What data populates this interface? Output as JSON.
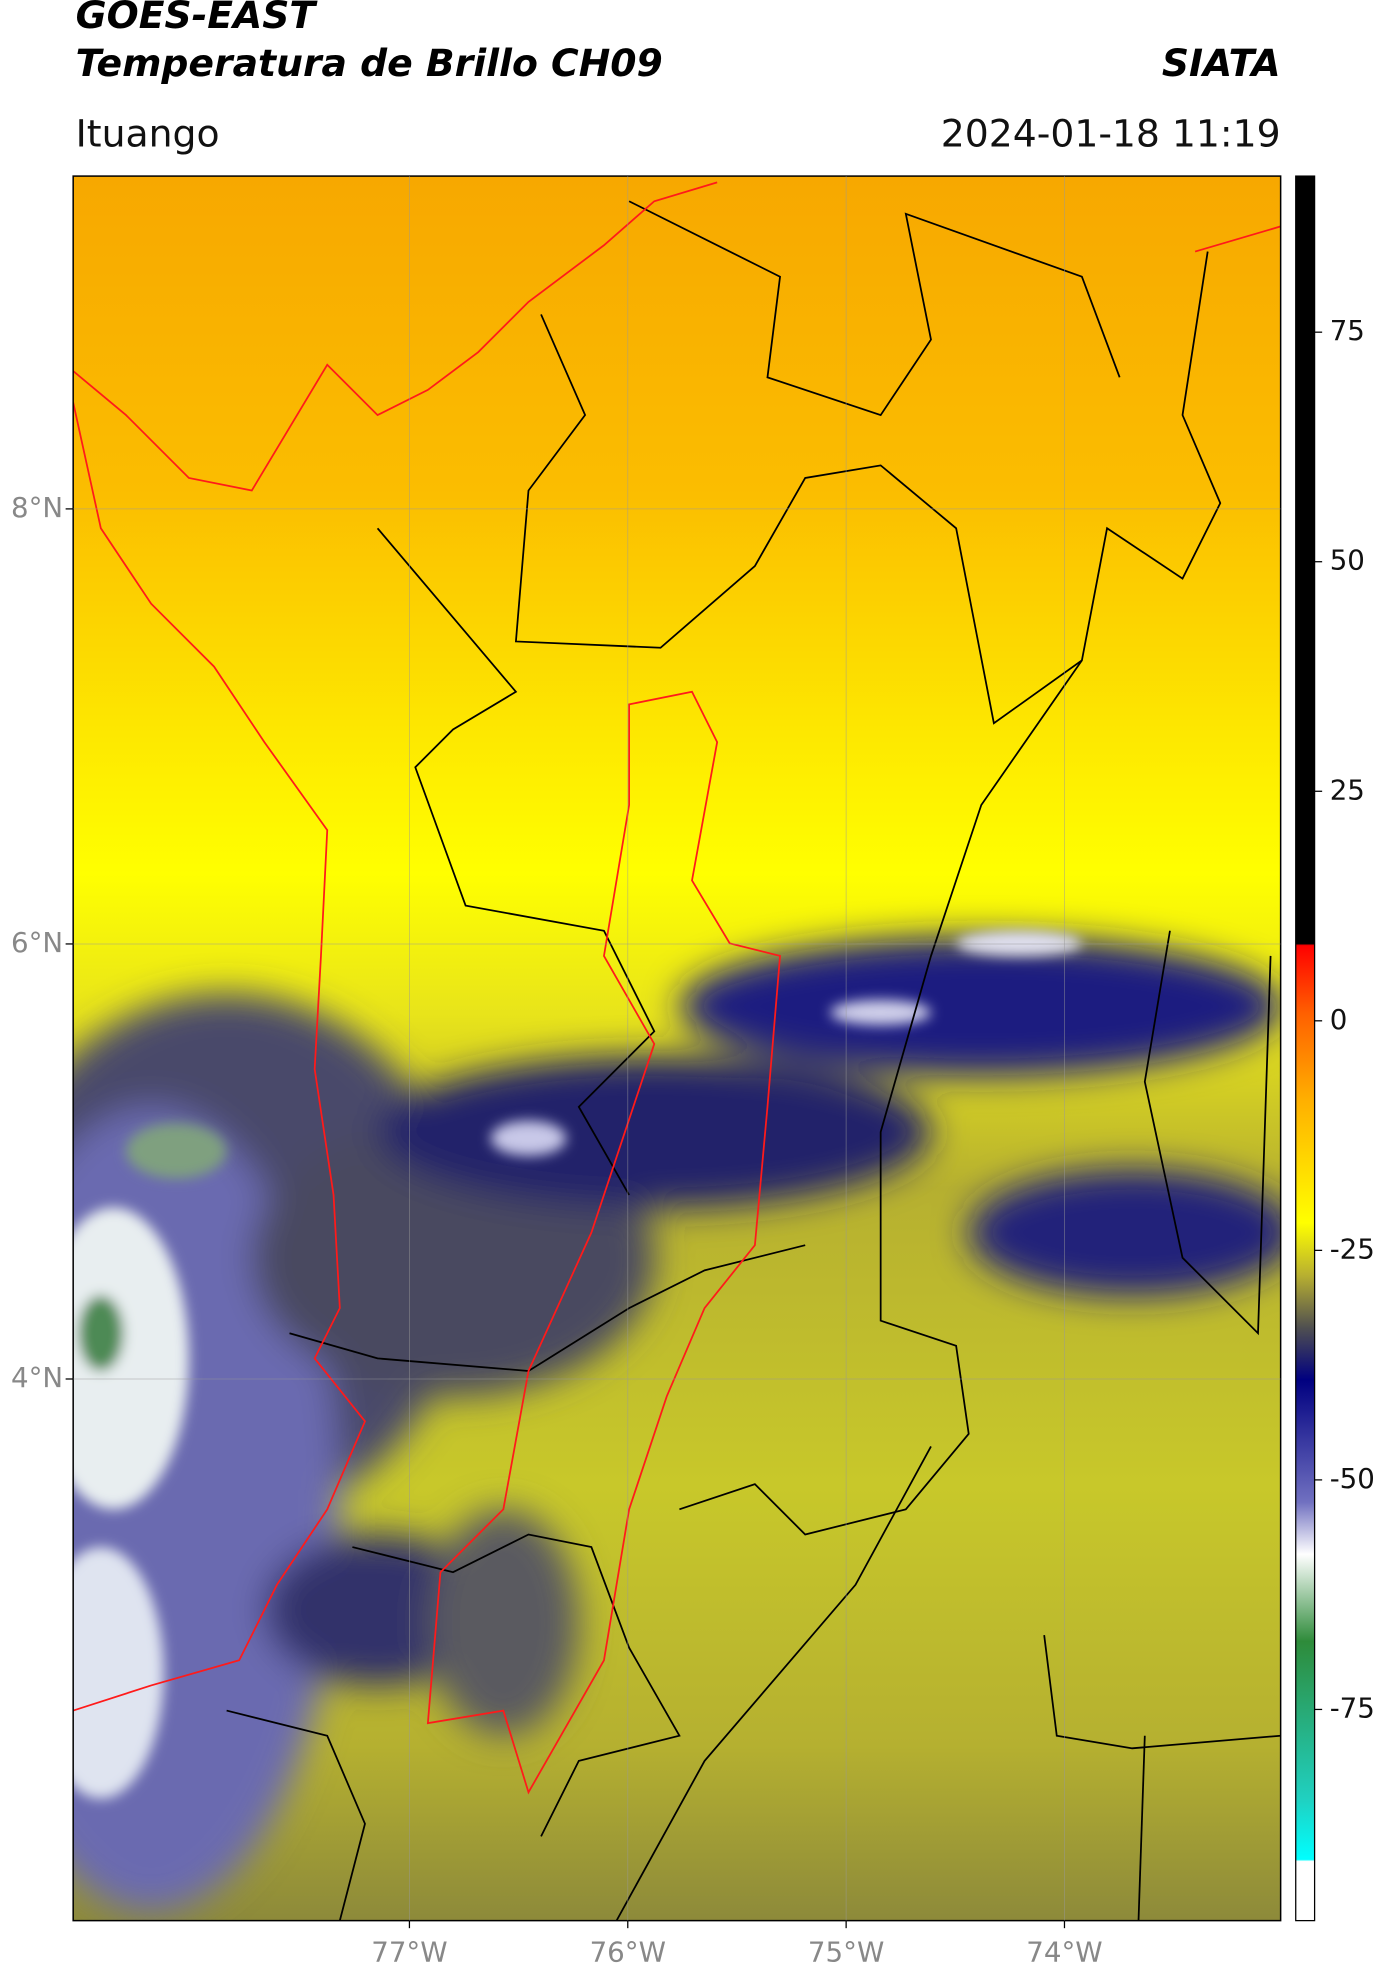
{
  "header": {
    "satellite": "GOES-EAST",
    "product": "Temperatura de Brillo CH09",
    "source": "SIATA",
    "location": "Ituango",
    "timestamp": "2024-01-18 11:19"
  },
  "map": {
    "lon_lim": [
      -78.54,
      -73.01
    ],
    "lat_lim": [
      1.51,
      9.53
    ],
    "lon_ticks": [
      {
        "value": -77,
        "label": "77°W"
      },
      {
        "value": -76,
        "label": "76°W"
      },
      {
        "value": -75,
        "label": "75°W"
      },
      {
        "value": -74,
        "label": "74°W"
      }
    ],
    "lat_ticks": [
      {
        "value": 8,
        "label": "8°N"
      },
      {
        "value": 6,
        "label": "6°N"
      },
      {
        "value": 4,
        "label": "4°N"
      }
    ],
    "grid": true
  },
  "colorbar": {
    "lim": [
      -98,
      92
    ],
    "ticks": [
      -75,
      -50,
      -25,
      0,
      25,
      50,
      75
    ]
  }
}
